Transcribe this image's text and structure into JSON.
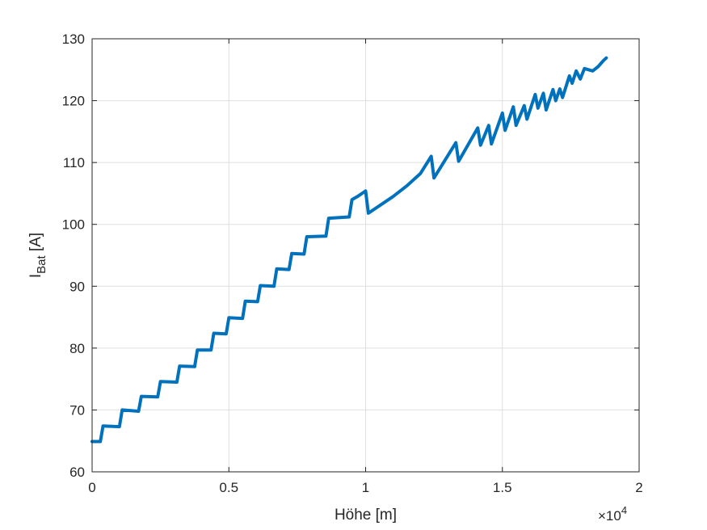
{
  "chart_data": {
    "type": "line",
    "xlabel": "Höhe [m]",
    "ylabel": {
      "main": "I",
      "subscript": "Bat",
      "unit": " [A]"
    },
    "x_exponent": {
      "times": "×10",
      "power": "4"
    },
    "xlim": [
      0,
      20000
    ],
    "ylim": [
      60,
      130
    ],
    "x_ticks": [
      0,
      5000,
      10000,
      15000,
      20000
    ],
    "x_tick_labels": [
      "0",
      "0.5",
      "1",
      "1.5",
      "2"
    ],
    "y_ticks": [
      60,
      70,
      80,
      90,
      100,
      110,
      120,
      130
    ],
    "y_tick_labels": [
      "60",
      "70",
      "80",
      "90",
      "100",
      "110",
      "120",
      "130"
    ],
    "grid": true,
    "line_color": "#0072BD",
    "series": [
      {
        "points": [
          [
            0,
            64.9
          ],
          [
            300,
            64.9
          ],
          [
            400,
            67.4
          ],
          [
            1000,
            67.3
          ],
          [
            1100,
            70.0
          ],
          [
            1700,
            69.8
          ],
          [
            1800,
            72.2
          ],
          [
            2400,
            72.1
          ],
          [
            2500,
            74.6
          ],
          [
            3100,
            74.5
          ],
          [
            3200,
            77.1
          ],
          [
            3750,
            77.0
          ],
          [
            3850,
            79.7
          ],
          [
            4350,
            79.7
          ],
          [
            4450,
            82.4
          ],
          [
            4900,
            82.3
          ],
          [
            5000,
            84.9
          ],
          [
            5500,
            84.8
          ],
          [
            5600,
            87.6
          ],
          [
            6050,
            87.5
          ],
          [
            6150,
            90.1
          ],
          [
            6650,
            90.0
          ],
          [
            6750,
            92.8
          ],
          [
            7200,
            92.7
          ],
          [
            7300,
            95.3
          ],
          [
            7750,
            95.2
          ],
          [
            7850,
            98.0
          ],
          [
            8550,
            98.1
          ],
          [
            8650,
            101.0
          ],
          [
            9400,
            101.2
          ],
          [
            9500,
            104.0
          ],
          [
            9700,
            104.5
          ],
          [
            10000,
            105.4
          ],
          [
            10100,
            101.8
          ],
          [
            11000,
            104.5
          ],
          [
            11500,
            106.2
          ],
          [
            12000,
            108.2
          ],
          [
            12400,
            111.0
          ],
          [
            12500,
            107.5
          ],
          [
            13300,
            113.2
          ],
          [
            13400,
            110.2
          ],
          [
            14100,
            115.6
          ],
          [
            14200,
            112.8
          ],
          [
            14500,
            116.0
          ],
          [
            14600,
            113.0
          ],
          [
            15000,
            118.0
          ],
          [
            15100,
            115.2
          ],
          [
            15400,
            119.0
          ],
          [
            15500,
            116.0
          ],
          [
            15800,
            119.2
          ],
          [
            15900,
            117.0
          ],
          [
            16200,
            121.0
          ],
          [
            16300,
            118.8
          ],
          [
            16500,
            121.2
          ],
          [
            16600,
            118.5
          ],
          [
            16850,
            121.8
          ],
          [
            16950,
            120.0
          ],
          [
            17100,
            121.9
          ],
          [
            17200,
            120.5
          ],
          [
            17450,
            124.0
          ],
          [
            17550,
            122.8
          ],
          [
            17700,
            124.8
          ],
          [
            17850,
            123.5
          ],
          [
            18000,
            125.2
          ],
          [
            18300,
            124.8
          ],
          [
            18500,
            125.5
          ],
          [
            18700,
            126.5
          ],
          [
            18800,
            126.9
          ]
        ]
      }
    ]
  }
}
